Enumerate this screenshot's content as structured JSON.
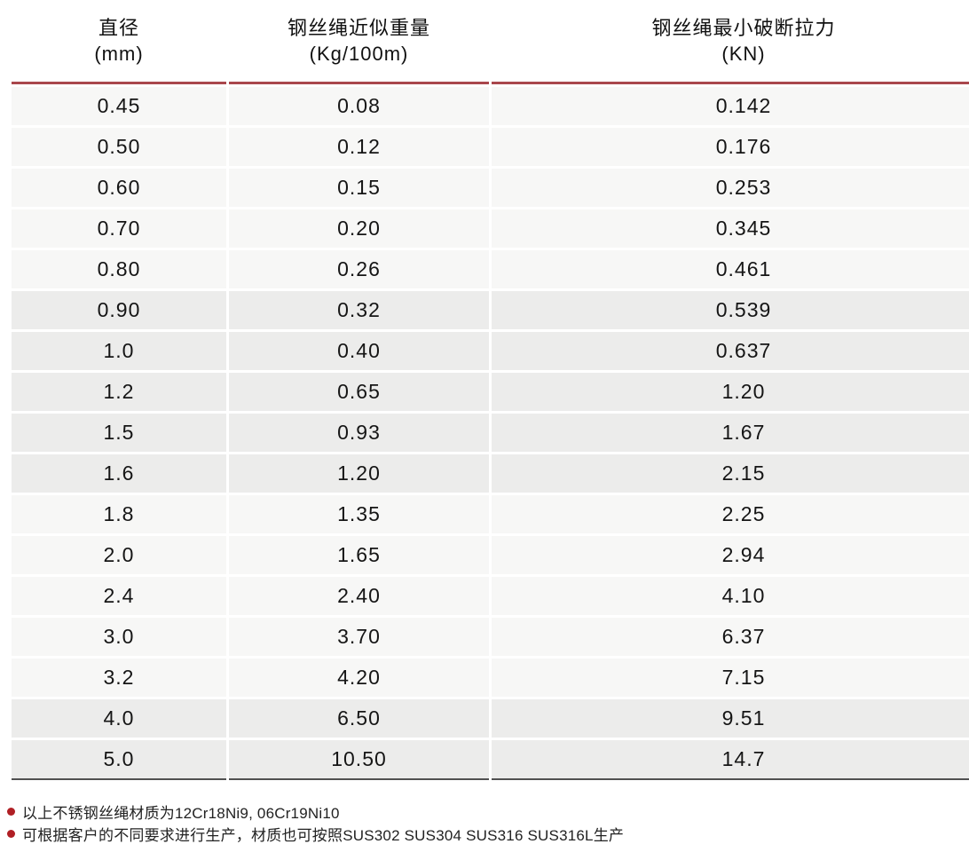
{
  "table": {
    "columns": [
      {
        "title": "直径",
        "unit": "(mm)"
      },
      {
        "title": "钢丝绳近似重量",
        "unit": "(Kg/100m)"
      },
      {
        "title": "钢丝绳最小破断拉力",
        "unit": "(KN)"
      }
    ],
    "rows": [
      [
        "0.45",
        "0.08",
        "0.142"
      ],
      [
        "0.50",
        "0.12",
        "0.176"
      ],
      [
        "0.60",
        "0.15",
        "0.253"
      ],
      [
        "0.70",
        "0.20",
        "0.345"
      ],
      [
        "0.80",
        "0.26",
        "0.461"
      ],
      [
        "0.90",
        "0.32",
        "0.539"
      ],
      [
        "1.0",
        "0.40",
        "0.637"
      ],
      [
        "1.2",
        "0.65",
        "1.20"
      ],
      [
        "1.5",
        "0.93",
        "1.67"
      ],
      [
        "1.6",
        "1.20",
        "2.15"
      ],
      [
        "1.8",
        "1.35",
        "2.25"
      ],
      [
        "2.0",
        "1.65",
        "2.94"
      ],
      [
        "2.4",
        "2.40",
        "4.10"
      ],
      [
        "3.0",
        "3.70",
        "6.37"
      ],
      [
        "3.2",
        "4.20",
        "7.15"
      ],
      [
        "4.0",
        "6.50",
        "9.51"
      ],
      [
        "5.0",
        "10.50",
        "14.7"
      ]
    ],
    "band_group_size": 5
  },
  "notes": [
    "以上不锈钢丝绳材质为12Cr18Ni9, 06Cr19Ni10",
    "可根据客户的不同要求进行生产，材质也可按照SUS302 SUS304 SUS316 SUS316L生产"
  ],
  "colors": {
    "header_rule": "#a9474c",
    "bullet": "#b01f24",
    "row_light": "#f7f7f6",
    "row_dark": "#ececeb",
    "bottom_border": "#515151"
  }
}
